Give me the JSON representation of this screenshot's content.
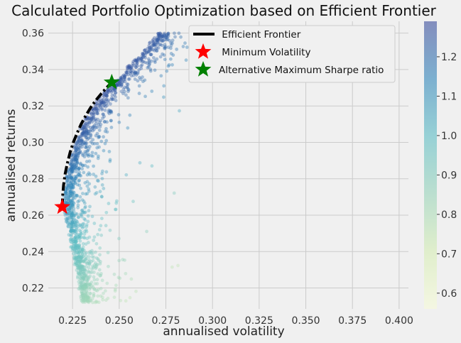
{
  "chart_data": {
    "type": "scatter",
    "title": "Calculated Portfolio Optimization based on Efficient Frontier",
    "xlabel": "annualised volatility",
    "ylabel": "annualised returns",
    "xlim": [
      0.212,
      0.405
    ],
    "ylim": [
      0.2085,
      0.3665
    ],
    "x_ticks": [
      "0.225",
      "0.250",
      "0.275",
      "0.300",
      "0.325",
      "0.350",
      "0.375",
      "0.400"
    ],
    "x_tick_values": [
      0.225,
      0.25,
      0.275,
      0.3,
      0.325,
      0.35,
      0.375,
      0.4
    ],
    "y_ticks": [
      "0.22",
      "0.24",
      "0.26",
      "0.28",
      "0.30",
      "0.32",
      "0.34",
      "0.36"
    ],
    "y_tick_values": [
      0.22,
      0.24,
      0.26,
      0.28,
      0.3,
      0.32,
      0.34,
      0.36
    ],
    "grid": true,
    "legend_position": "top-right",
    "colorbar": {
      "min": 0.56,
      "max": 1.29,
      "ticks": [
        "0.6",
        "0.7",
        "0.8",
        "0.9",
        "1.0",
        "1.1",
        "1.2"
      ],
      "tick_values": [
        0.6,
        0.7,
        0.8,
        0.9,
        1.0,
        1.1,
        1.2
      ],
      "colormap": "YlGnBu"
    },
    "series": [
      {
        "name": " Efficient Frontier",
        "type": "line",
        "style": "dash-dot",
        "color": "#000000",
        "x": [
          0.2195,
          0.2197,
          0.2202,
          0.221,
          0.2222,
          0.2237,
          0.2254,
          0.2274,
          0.2296,
          0.232,
          0.2346,
          0.2374,
          0.2402,
          0.2432,
          0.246
        ],
        "y": [
          0.2645,
          0.2705,
          0.2765,
          0.2825,
          0.2885,
          0.2945,
          0.3,
          0.305,
          0.31,
          0.3145,
          0.319,
          0.323,
          0.3265,
          0.33,
          0.333
        ]
      },
      {
        "name": " Minimum Volatility",
        "type": "marker",
        "marker": "star",
        "color": "#ff0000",
        "x": 0.2195,
        "y": 0.2645
      },
      {
        "name": "Alternative Maximum Sharpe ratio",
        "type": "marker",
        "marker": "star",
        "color": "#008000",
        "x": 0.246,
        "y": 0.333
      },
      {
        "name": "Simulated portfolios",
        "type": "scatter",
        "color_by": "sharpe_ratio",
        "count": 1500,
        "note": "randomly generated portfolios bounded by the efficient frontier"
      }
    ]
  }
}
